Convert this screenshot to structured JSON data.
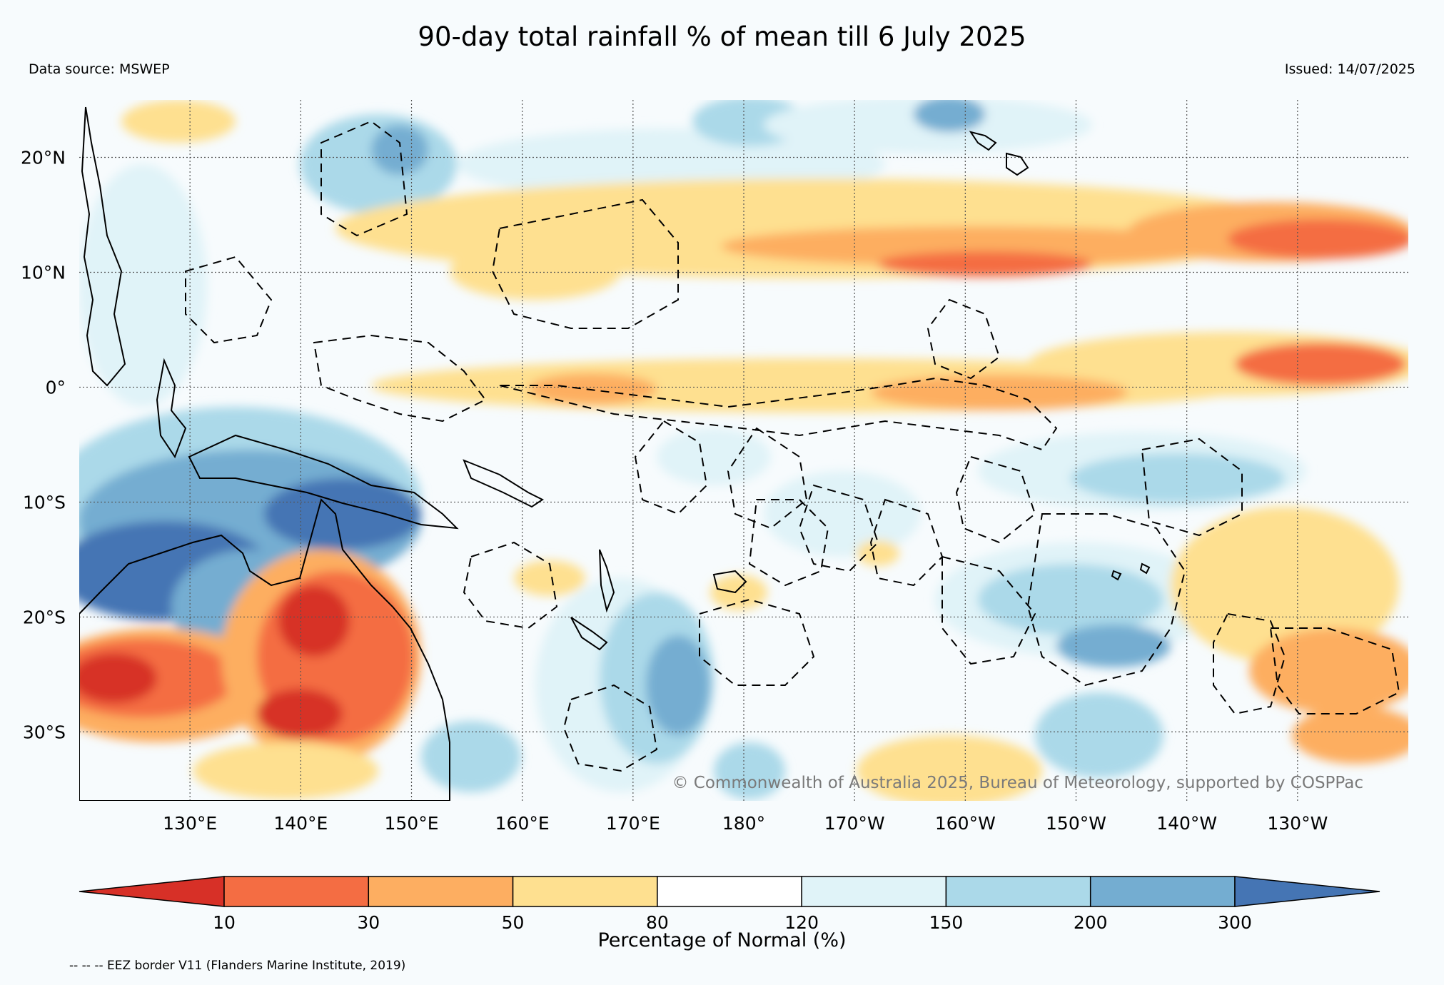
{
  "title": "90-day total rainfall % of mean till 6 July 2025",
  "data_source": "Data source: MSWEP",
  "issued": "Issued: 14/07/2025",
  "copyright": "© Commonwealth of Australia 2025, Bureau of Meteorology, supported by COSPPac",
  "footnote": "-- -- -- EEZ border V11 (Flanders Marine Institute, 2019)",
  "map": {
    "lon_range_east": [
      120,
      240
    ],
    "lat_range": [
      -36,
      25
    ],
    "lat_labels": [
      {
        "lat": 20,
        "label": "20°N"
      },
      {
        "lat": 10,
        "label": "10°N"
      },
      {
        "lat": 0,
        "label": "0°"
      },
      {
        "lat": -10,
        "label": "10°S"
      },
      {
        "lat": -20,
        "label": "20°S"
      },
      {
        "lat": -30,
        "label": "30°S"
      }
    ],
    "lon_labels": [
      {
        "lon": 130,
        "label": "130°E"
      },
      {
        "lon": 140,
        "label": "140°E"
      },
      {
        "lon": 150,
        "label": "150°E"
      },
      {
        "lon": 160,
        "label": "160°E"
      },
      {
        "lon": 170,
        "label": "170°E"
      },
      {
        "lon": 180,
        "label": "180°"
      },
      {
        "lon": 190,
        "label": "170°W"
      },
      {
        "lon": 200,
        "label": "160°W"
      },
      {
        "lon": 210,
        "label": "150°W"
      },
      {
        "lon": 220,
        "label": "140°W"
      },
      {
        "lon": 230,
        "label": "130°W"
      }
    ],
    "gridlines": true
  },
  "colorbar": {
    "label": "Percentage of Normal (%)",
    "boundaries": [
      "10",
      "30",
      "50",
      "80",
      "120",
      "150",
      "200",
      "300"
    ],
    "colors": [
      "#d73027",
      "#f46d43",
      "#fdae61",
      "#fee090",
      "#ffffff",
      "#e0f3f8",
      "#abd9e9",
      "#74add1",
      "#4575b4"
    ],
    "extend": "both"
  }
}
